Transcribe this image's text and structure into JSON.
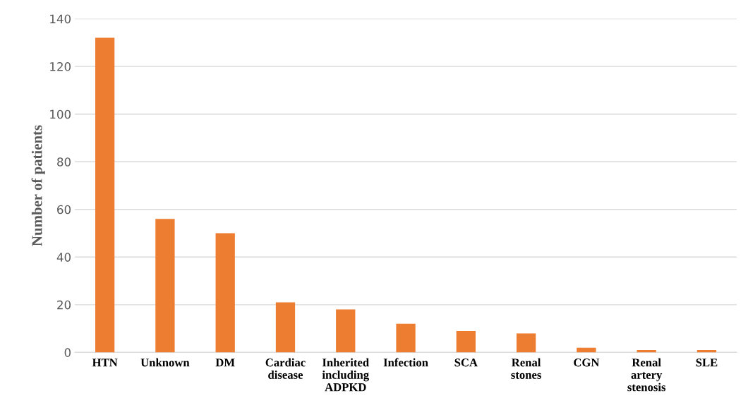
{
  "chart_data": {
    "type": "bar",
    "ylabel": "Number of patients",
    "categories": [
      "HTN",
      "Unknown",
      "DM",
      "Cardiac\ndisease",
      "Inherited\nincluding\nADPKD",
      "Infection",
      "SCA",
      "Renal\nstones",
      "CGN",
      "Renal\nartery\nstenosis",
      "SLE"
    ],
    "values": [
      132,
      56,
      50,
      21,
      18,
      12,
      9,
      8,
      2,
      1,
      1
    ],
    "color": "#ed7d31",
    "ylim": [
      0,
      140
    ],
    "yticks": [
      0,
      20,
      40,
      60,
      80,
      100,
      120,
      140
    ],
    "grid": "y",
    "legend": false
  }
}
